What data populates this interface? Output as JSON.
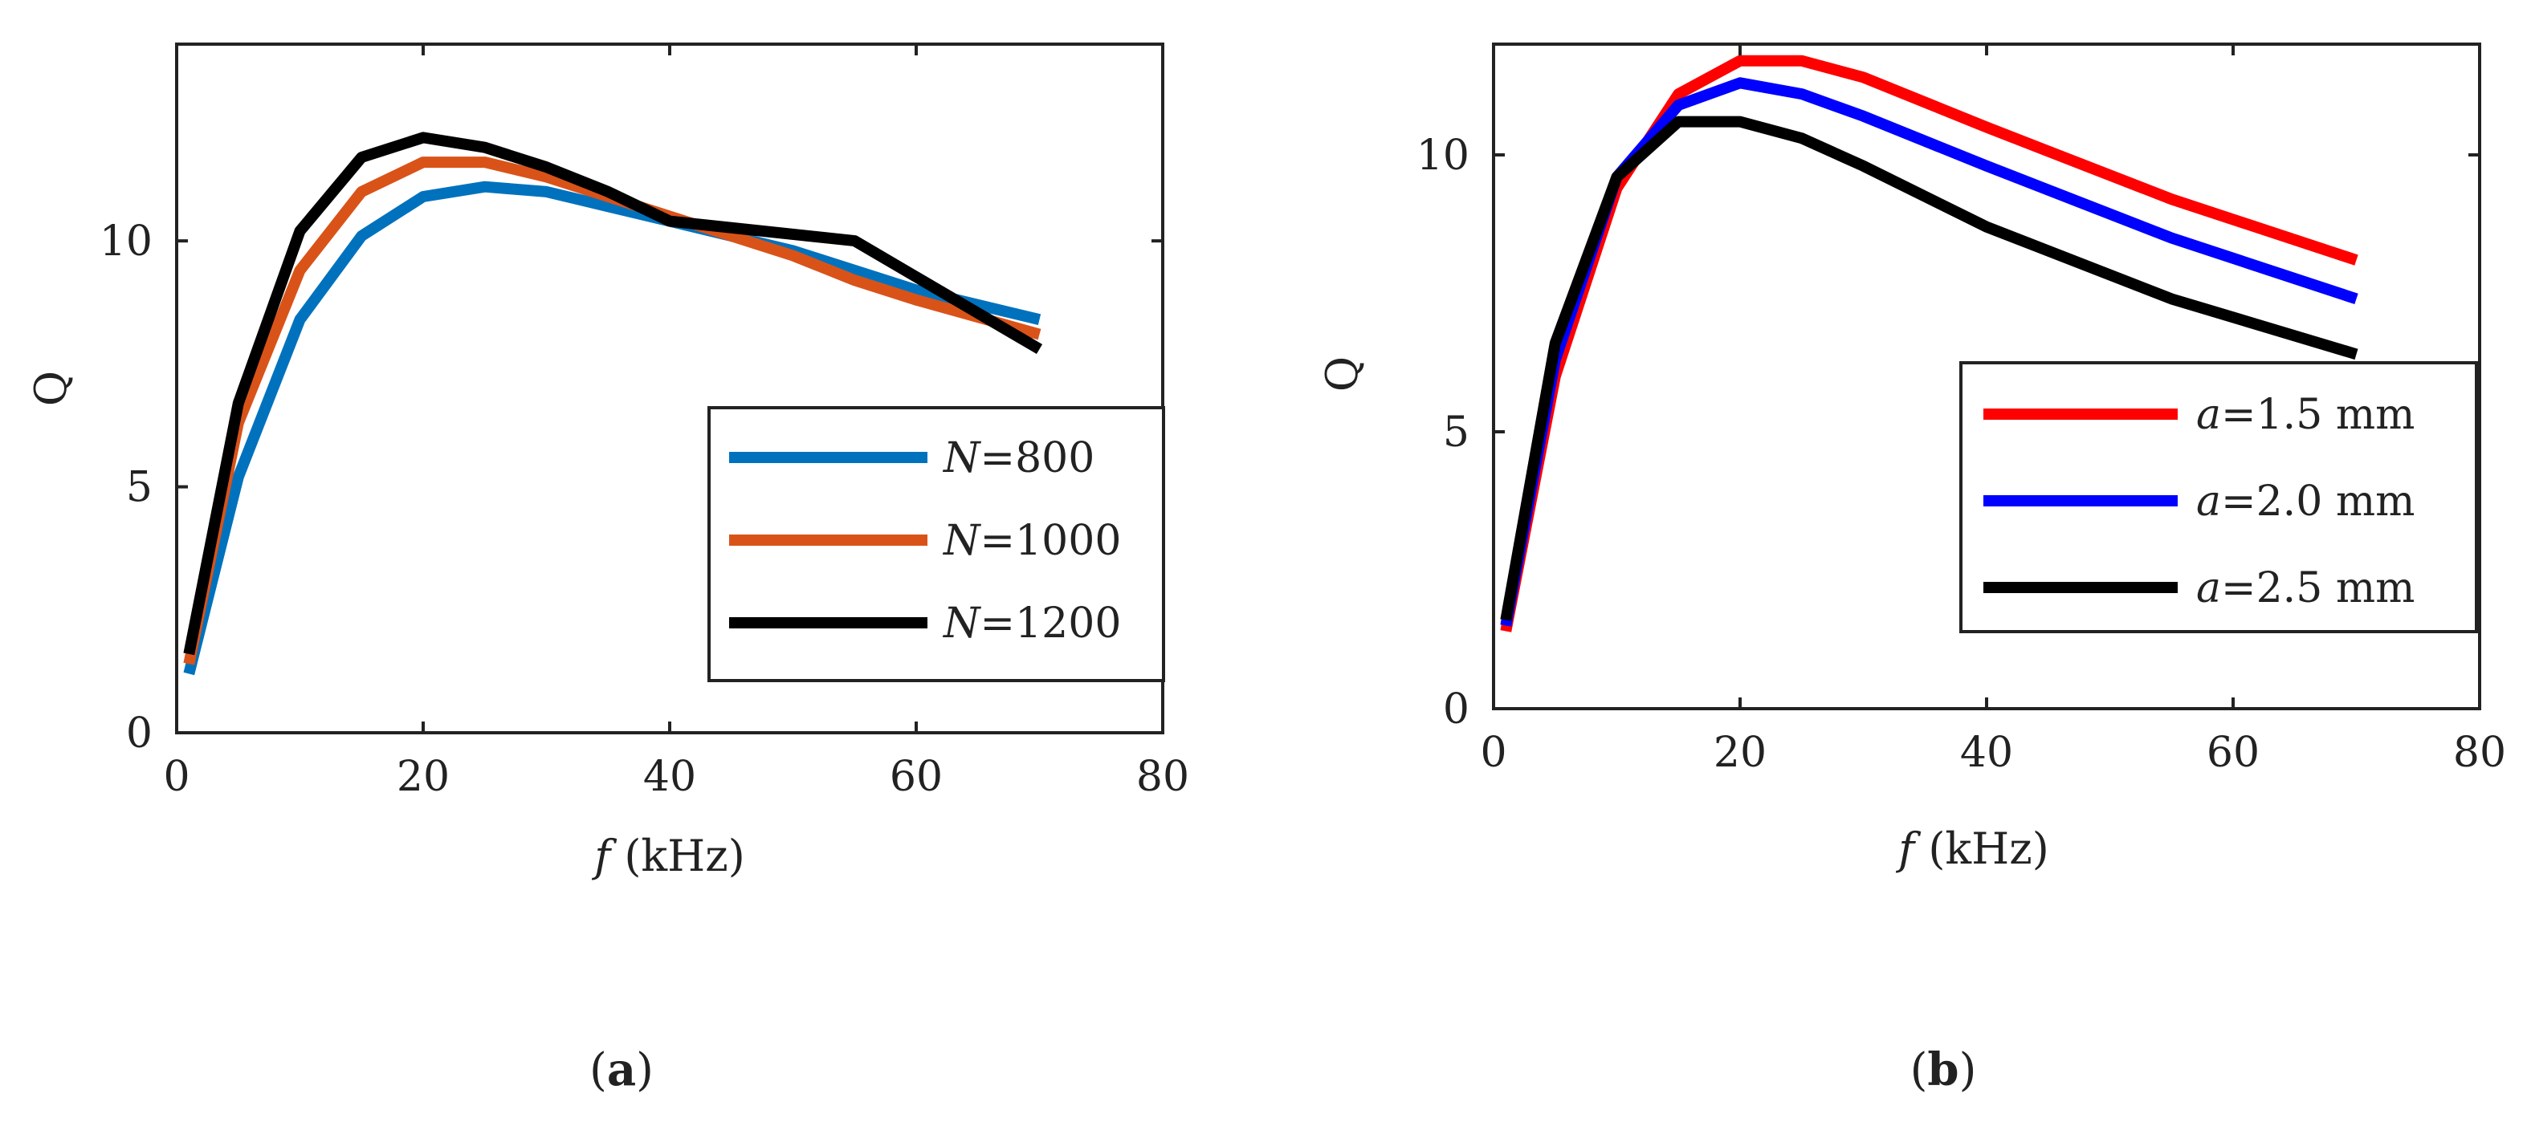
{
  "chart_data": [
    {
      "type": "line",
      "caption_label": "a",
      "xlabel": "f",
      "xlabel_unit": " (kHz)",
      "ylabel": "Q",
      "xlim": [
        0,
        80
      ],
      "ylim": [
        0,
        14
      ],
      "xticks": [
        0,
        20,
        40,
        60,
        80
      ],
      "yticks": [
        0,
        5,
        10
      ],
      "legend_position": "lower-right",
      "series": [
        {
          "name_var": "N",
          "name_value": "=800",
          "color": "#0072BD",
          "x": [
            1,
            5,
            10,
            15,
            20,
            25,
            30,
            40,
            50,
            60,
            70
          ],
          "y": [
            1.2,
            5.2,
            8.4,
            10.1,
            10.9,
            11.1,
            11.0,
            10.4,
            9.8,
            9.0,
            8.4
          ]
        },
        {
          "name_var": "N",
          "name_value": "=1000",
          "color": "#D95319",
          "x": [
            1,
            5,
            10,
            15,
            20,
            25,
            30,
            40,
            50,
            55,
            60,
            70
          ],
          "y": [
            1.4,
            6.3,
            9.4,
            11.0,
            11.6,
            11.6,
            11.3,
            10.5,
            9.7,
            9.2,
            8.8,
            8.1
          ]
        },
        {
          "name_var": "N",
          "name_value": "=1200",
          "color": "#000000",
          "x": [
            1,
            5,
            10,
            15,
            20,
            25,
            30,
            35,
            40,
            55,
            70
          ],
          "y": [
            1.6,
            6.7,
            10.2,
            11.7,
            12.1,
            11.9,
            11.5,
            11.0,
            10.4,
            10.0,
            7.8
          ]
        }
      ]
    },
    {
      "type": "line",
      "caption_label": "b",
      "xlabel": "f",
      "xlabel_unit": " (kHz)",
      "ylabel": "Q",
      "xlim": [
        0,
        80
      ],
      "ylim": [
        0,
        12
      ],
      "xticks": [
        0,
        20,
        40,
        60,
        80
      ],
      "yticks": [
        0,
        5,
        10
      ],
      "legend_position": "right",
      "series": [
        {
          "name_var": "a",
          "name_value": "=1.5 mm",
          "color": "#FF0000",
          "x": [
            1,
            5,
            10,
            15,
            20,
            25,
            30,
            40,
            55,
            70
          ],
          "y": [
            1.4,
            6.0,
            9.4,
            11.1,
            11.7,
            11.7,
            11.4,
            10.5,
            9.2,
            8.1
          ]
        },
        {
          "name_var": "a",
          "name_value": "=2.0 mm",
          "color": "#0000FF",
          "x": [
            1,
            5,
            10,
            15,
            20,
            25,
            30,
            40,
            55,
            70
          ],
          "y": [
            1.5,
            6.3,
            9.6,
            10.9,
            11.3,
            11.1,
            10.7,
            9.8,
            8.5,
            7.4
          ]
        },
        {
          "name_var": "a",
          "name_value": "=2.5 mm",
          "color": "#000000",
          "x": [
            1,
            5,
            10,
            15,
            20,
            25,
            30,
            40,
            55,
            70
          ],
          "y": [
            1.6,
            6.6,
            9.6,
            10.6,
            10.6,
            10.3,
            9.8,
            8.7,
            7.4,
            6.4
          ]
        }
      ]
    }
  ]
}
